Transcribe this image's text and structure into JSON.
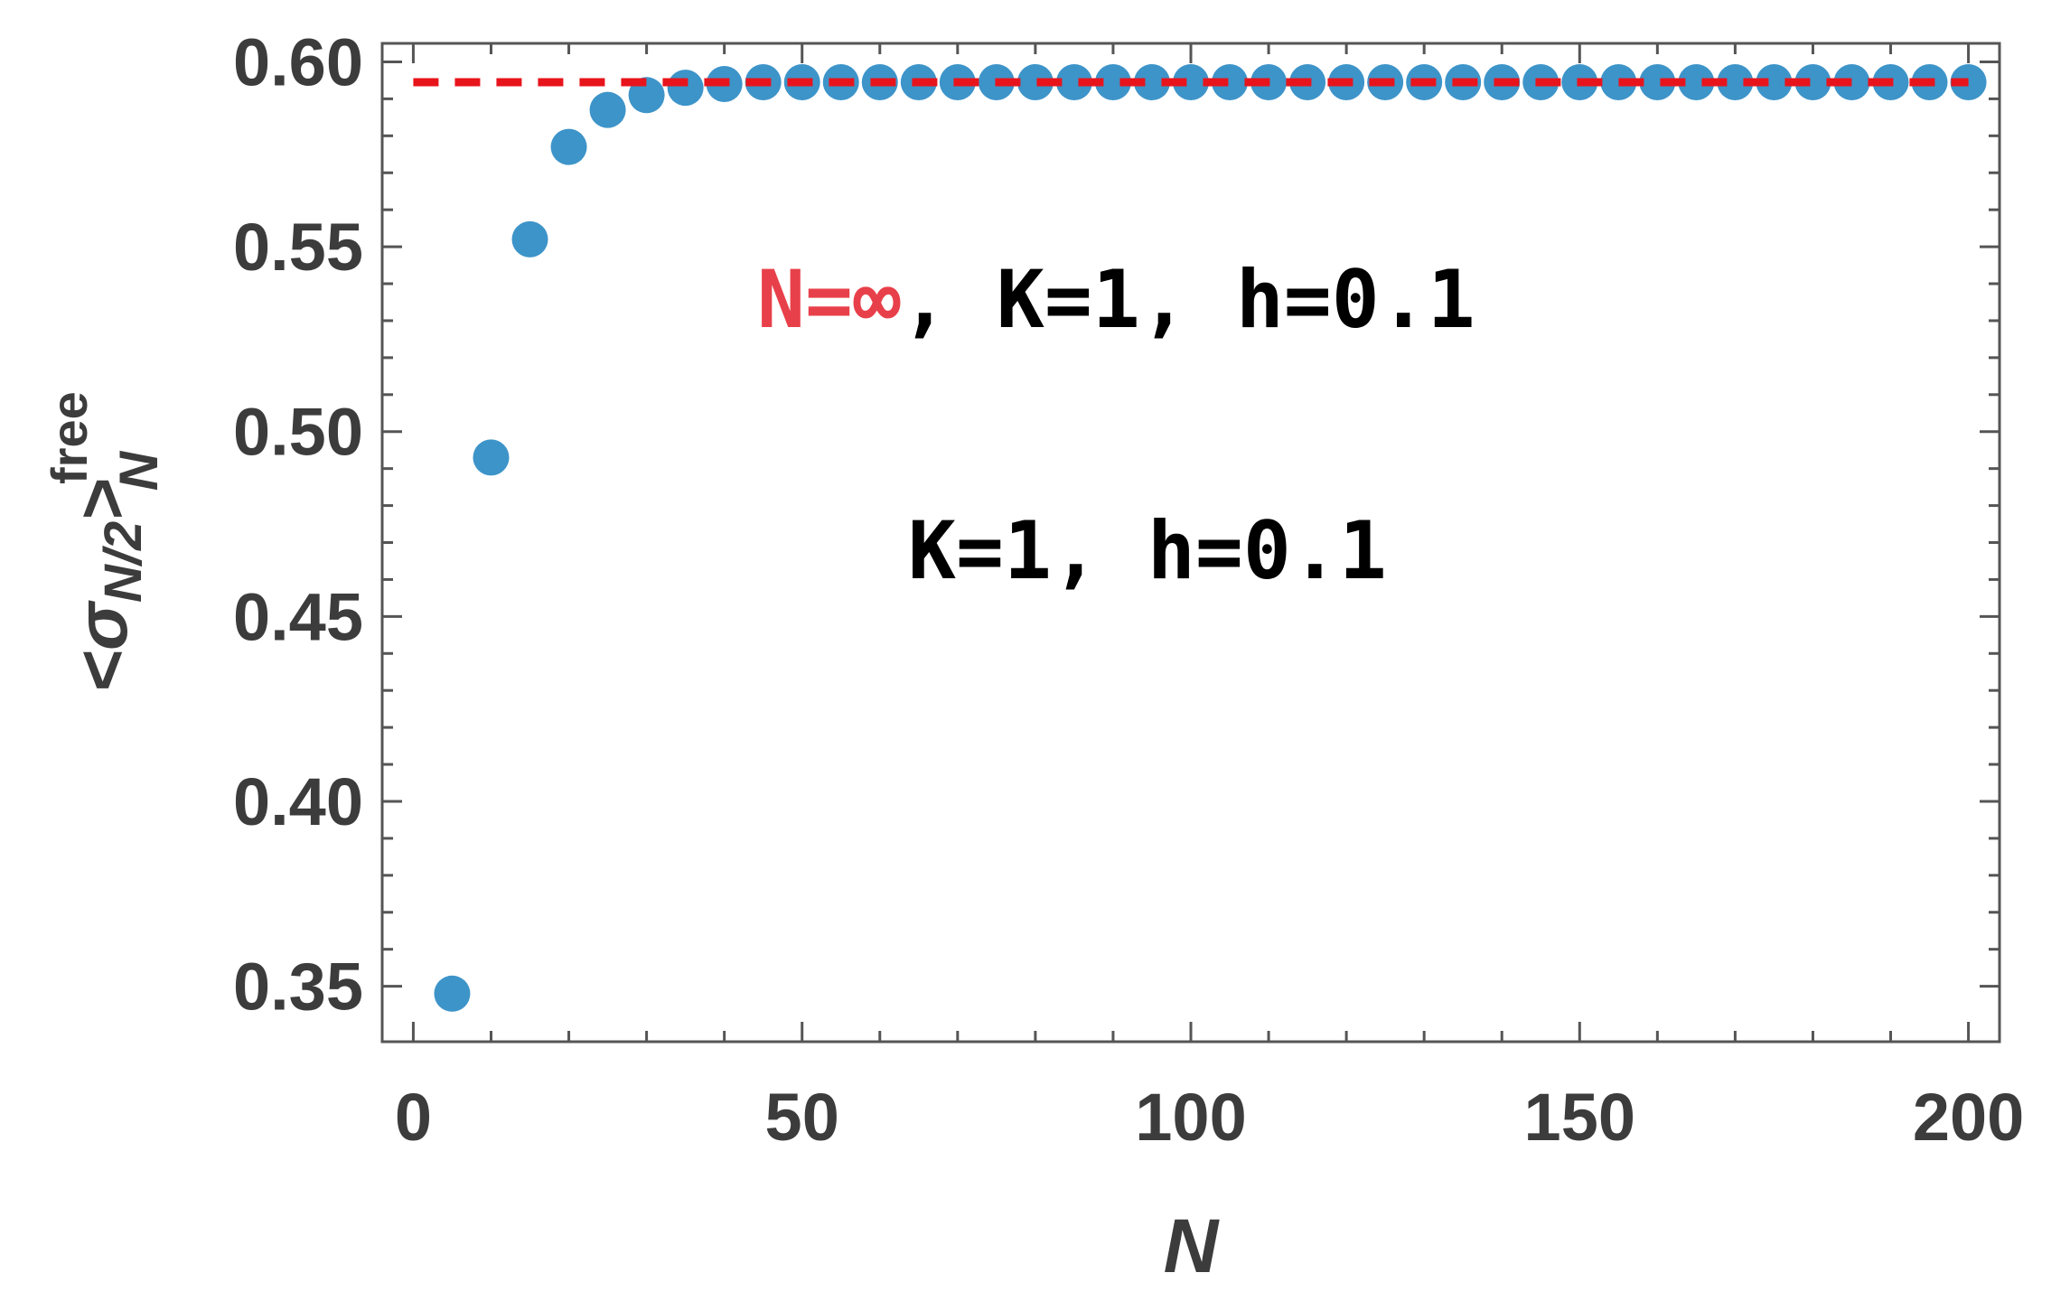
{
  "chart_data": {
    "type": "scatter",
    "title": "",
    "xlabel": "N",
    "ylabel": {
      "main": "<σ",
      "subscript": "N/2",
      "close": ">",
      "superscript": "free",
      "subscript2": "N"
    },
    "xlim": [
      -4,
      204
    ],
    "ylim": [
      0.335,
      0.605
    ],
    "xticks": [
      0,
      50,
      100,
      150,
      200
    ],
    "yticks": [
      0.35,
      0.4,
      0.45,
      0.5,
      0.55,
      0.6
    ],
    "xtick_labels": [
      "0",
      "50",
      "100",
      "150",
      "200"
    ],
    "ytick_labels": [
      "0.35",
      "0.40",
      "0.45",
      "0.50",
      "0.55",
      "0.60"
    ],
    "grid": false,
    "series": [
      {
        "marker_color": "#3d94c9",
        "x": [
          5,
          10,
          15,
          20,
          25,
          30,
          35,
          40,
          45,
          50,
          55,
          60,
          65,
          70,
          75,
          80,
          85,
          90,
          95,
          100,
          105,
          110,
          115,
          120,
          125,
          130,
          135,
          140,
          145,
          150,
          155,
          160,
          165,
          170,
          175,
          180,
          185,
          190,
          195,
          200
        ],
        "y": [
          0.348,
          0.493,
          0.552,
          0.577,
          0.587,
          0.591,
          0.593,
          0.594,
          0.5945,
          0.5945,
          0.5945,
          0.5945,
          0.5945,
          0.5945,
          0.5945,
          0.5945,
          0.5945,
          0.5945,
          0.5945,
          0.5945,
          0.5945,
          0.5945,
          0.5945,
          0.5945,
          0.5945,
          0.5945,
          0.5945,
          0.5945,
          0.5945,
          0.5945,
          0.5945,
          0.5945,
          0.5945,
          0.5945,
          0.5945,
          0.5945,
          0.5945,
          0.5945,
          0.5945,
          0.5945
        ]
      }
    ],
    "reference_line": {
      "y": 0.5945,
      "x_from": 0,
      "x_to": 200,
      "color": "#e8141c",
      "style": "dashed"
    },
    "annotations": [
      {
        "parts": [
          {
            "text": "N=∞",
            "color": "#e8404a"
          },
          {
            "text": ", K=1, h=0.1",
            "color": "#000000"
          }
        ]
      },
      {
        "parts": [
          {
            "text": "K=1, h=0.1",
            "color": "#000000"
          }
        ]
      }
    ]
  }
}
